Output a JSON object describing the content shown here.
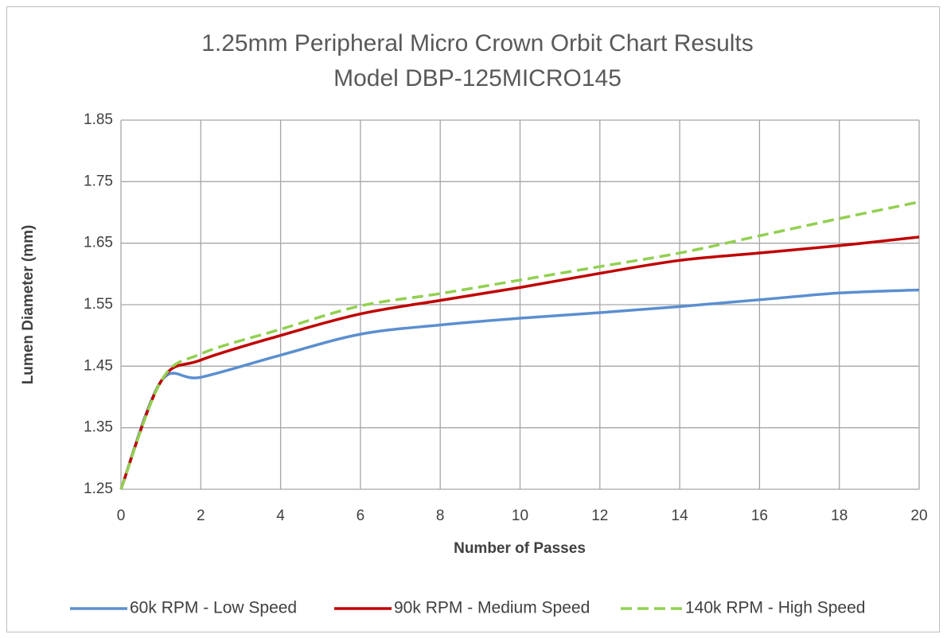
{
  "chart_data": {
    "type": "line",
    "title": "1.25mm Peripheral Micro Crown Orbit Chart Results",
    "subtitle": "Model DBP-125MICRO145",
    "x_label": "Number of Passes",
    "y_label": "Lumen Diameter (mm)",
    "x": [
      0,
      1,
      2,
      4,
      6,
      8,
      10,
      12,
      14,
      16,
      18,
      20
    ],
    "series": [
      {
        "name": "60k RPM - Low Speed",
        "color": "#5b8fd0",
        "dash": false,
        "values": [
          1.25,
          1.425,
          1.432,
          1.468,
          1.502,
          1.517,
          1.528,
          1.537,
          1.547,
          1.558,
          1.569,
          1.574
        ]
      },
      {
        "name": "90k RPM - Medium Speed",
        "color": "#c00000",
        "dash": false,
        "values": [
          1.25,
          1.425,
          1.46,
          1.5,
          1.535,
          1.557,
          1.578,
          1.601,
          1.622,
          1.634,
          1.646,
          1.66
        ]
      },
      {
        "name": "140k RPM - High Speed",
        "color": "#92d050",
        "dash": true,
        "values": [
          1.25,
          1.425,
          1.47,
          1.51,
          1.548,
          1.568,
          1.59,
          1.612,
          1.634,
          1.662,
          1.69,
          1.717
        ]
      }
    ],
    "xlim": [
      0,
      20
    ],
    "xticks": [
      0,
      2,
      4,
      6,
      8,
      10,
      12,
      14,
      16,
      18,
      20
    ],
    "ylim": [
      1.25,
      1.85
    ],
    "yticks": [
      1.25,
      1.35,
      1.45,
      1.55,
      1.65,
      1.75,
      1.85
    ],
    "grid": true,
    "legend": "bottom"
  }
}
